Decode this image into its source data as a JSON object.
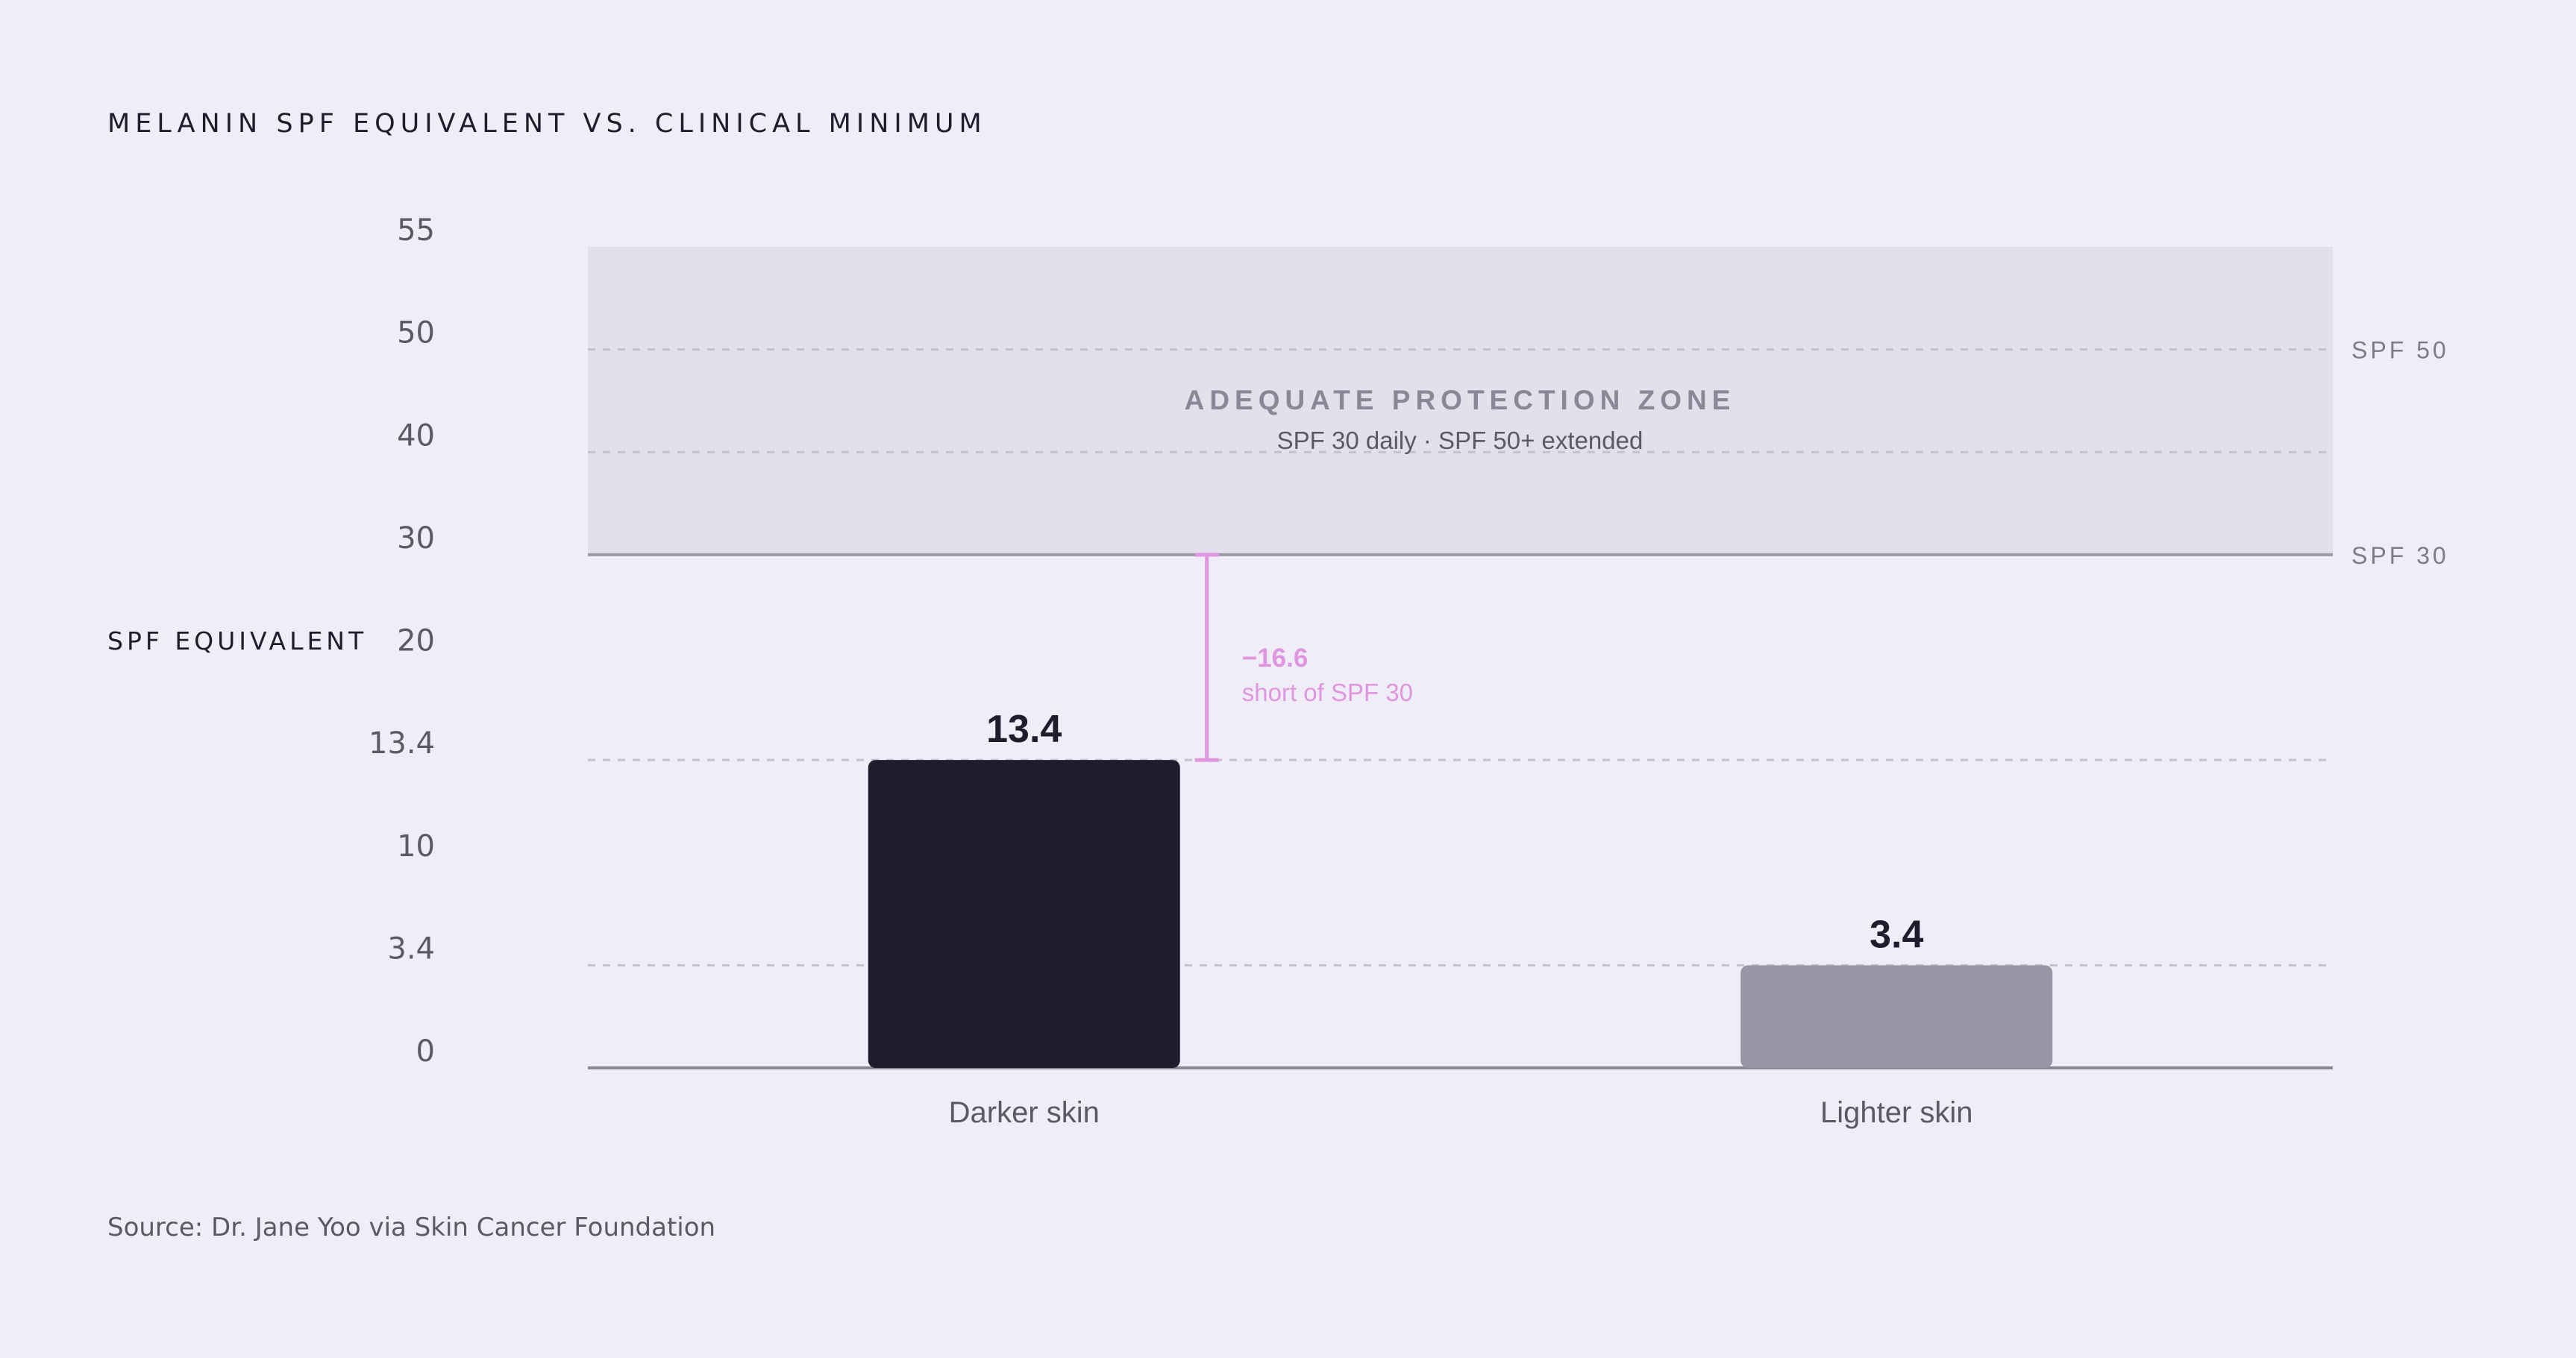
{
  "chart_data": {
    "type": "bar",
    "title": "MELANIN SPF EQUIVALENT VS. CLINICAL MINIMUM",
    "ylabel": "SPF EQUIVALENT",
    "xlabel": "",
    "categories": [
      "Darker skin",
      "Lighter skin"
    ],
    "values": [
      13.4,
      3.4
    ],
    "value_labels": [
      "13.4",
      "3.4"
    ],
    "ylim": [
      0,
      55
    ],
    "y_ticks": [
      "0",
      "3.4",
      "10",
      "13.4",
      "20",
      "30",
      "40",
      "50",
      "55"
    ],
    "bar_colors": [
      "#1f1c2e",
      "#9896a5"
    ],
    "reference_lines": [
      {
        "value": 30,
        "label": "SPF 30"
      },
      {
        "value": 50,
        "label": "SPF 50"
      }
    ],
    "zone": {
      "from": 30,
      "to": 55,
      "title": "ADEQUATE PROTECTION ZONE",
      "subtitle": "SPF 30 daily · SPF 50+ extended"
    },
    "gap_annotation": {
      "category": "Darker skin",
      "from": 13.4,
      "to": 30,
      "value_label": "−16.6",
      "note": "short of SPF 30",
      "color": "#e096de"
    },
    "grid": "dashed",
    "legend": "none"
  },
  "source": "Source: Dr. Jane Yoo via Skin Cancer Foundation"
}
